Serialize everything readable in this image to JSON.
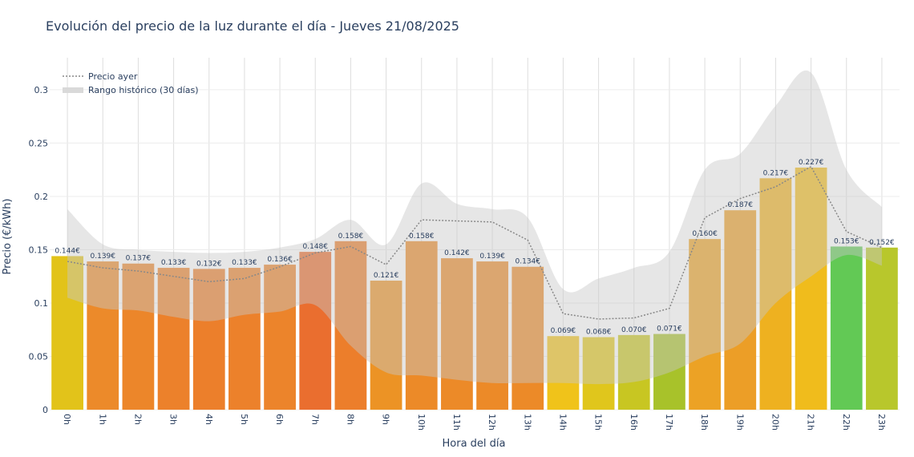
{
  "chart_data": {
    "type": "bar",
    "title": "Evolución del precio de la luz durante el día - Jueves 21/08/2025",
    "xlabel": "Hora del día",
    "ylabel": "Precio (€/kWh)",
    "ylim": [
      0,
      0.33
    ],
    "yticks": [
      0,
      0.05,
      0.1,
      0.15,
      0.2,
      0.25,
      0.3
    ],
    "ytick_labels": [
      "0",
      "0.05",
      "0.1",
      "0.15",
      "0.2",
      "0.25",
      "0.3"
    ],
    "categories": [
      "0h",
      "1h",
      "2h",
      "3h",
      "4h",
      "5h",
      "6h",
      "7h",
      "8h",
      "9h",
      "10h",
      "11h",
      "12h",
      "13h",
      "14h",
      "15h",
      "16h",
      "17h",
      "18h",
      "19h",
      "20h",
      "21h",
      "22h",
      "23h"
    ],
    "values": [
      0.144,
      0.139,
      0.137,
      0.133,
      0.132,
      0.133,
      0.136,
      0.148,
      0.158,
      0.121,
      0.158,
      0.142,
      0.139,
      0.134,
      0.069,
      0.068,
      0.07,
      0.071,
      0.16,
      0.187,
      0.217,
      0.227,
      0.153,
      0.152
    ],
    "value_labels": [
      "0.144€",
      "0.139€",
      "0.137€",
      "0.133€",
      "0.132€",
      "0.133€",
      "0.136€",
      "0.148€",
      "0.158€",
      "0.121€",
      "0.158€",
      "0.142€",
      "0.139€",
      "0.134€",
      "0.069€",
      "0.068€",
      "0.070€",
      "0.071€",
      "0.160€",
      "0.187€",
      "0.217€",
      "0.227€",
      "0.153€",
      "0.152€"
    ],
    "bar_colors": [
      "#e2c31a",
      "#ec8a2a",
      "#ec862a",
      "#ec812b",
      "#ec7f2b",
      "#ec812b",
      "#ec842b",
      "#ea6e2f",
      "#ec7e2b",
      "#ec9325",
      "#ec8a28",
      "#ec8a28",
      "#ec8a28",
      "#ec8a28",
      "#f0c31a",
      "#e0c61c",
      "#c8c622",
      "#a8c22a",
      "#eca225",
      "#ec9e27",
      "#eeb120",
      "#f0bc1c",
      "#62c955",
      "#b8c72c"
    ],
    "series": [
      {
        "name": "Precio ayer",
        "style": "dotted-line",
        "color": "#888888",
        "values": [
          0.139,
          0.133,
          0.13,
          0.125,
          0.12,
          0.123,
          0.134,
          0.147,
          0.153,
          0.136,
          0.178,
          0.177,
          0.176,
          0.159,
          0.09,
          0.085,
          0.086,
          0.095,
          0.18,
          0.198,
          0.209,
          0.228,
          0.167,
          0.152
        ]
      },
      {
        "name": "Rango histórico (30 días)",
        "style": "band",
        "color": "#cccccc",
        "low": [
          0.105,
          0.095,
          0.093,
          0.087,
          0.083,
          0.089,
          0.092,
          0.098,
          0.06,
          0.035,
          0.032,
          0.028,
          0.025,
          0.025,
          0.025,
          0.024,
          0.026,
          0.035,
          0.05,
          0.062,
          0.1,
          0.125,
          0.145,
          0.135
        ],
        "high": [
          0.188,
          0.155,
          0.15,
          0.148,
          0.147,
          0.148,
          0.152,
          0.16,
          0.178,
          0.155,
          0.212,
          0.193,
          0.188,
          0.18,
          0.113,
          0.123,
          0.133,
          0.148,
          0.225,
          0.24,
          0.285,
          0.316,
          0.225,
          0.19
        ]
      }
    ],
    "legend": "top-left",
    "grid": true
  }
}
